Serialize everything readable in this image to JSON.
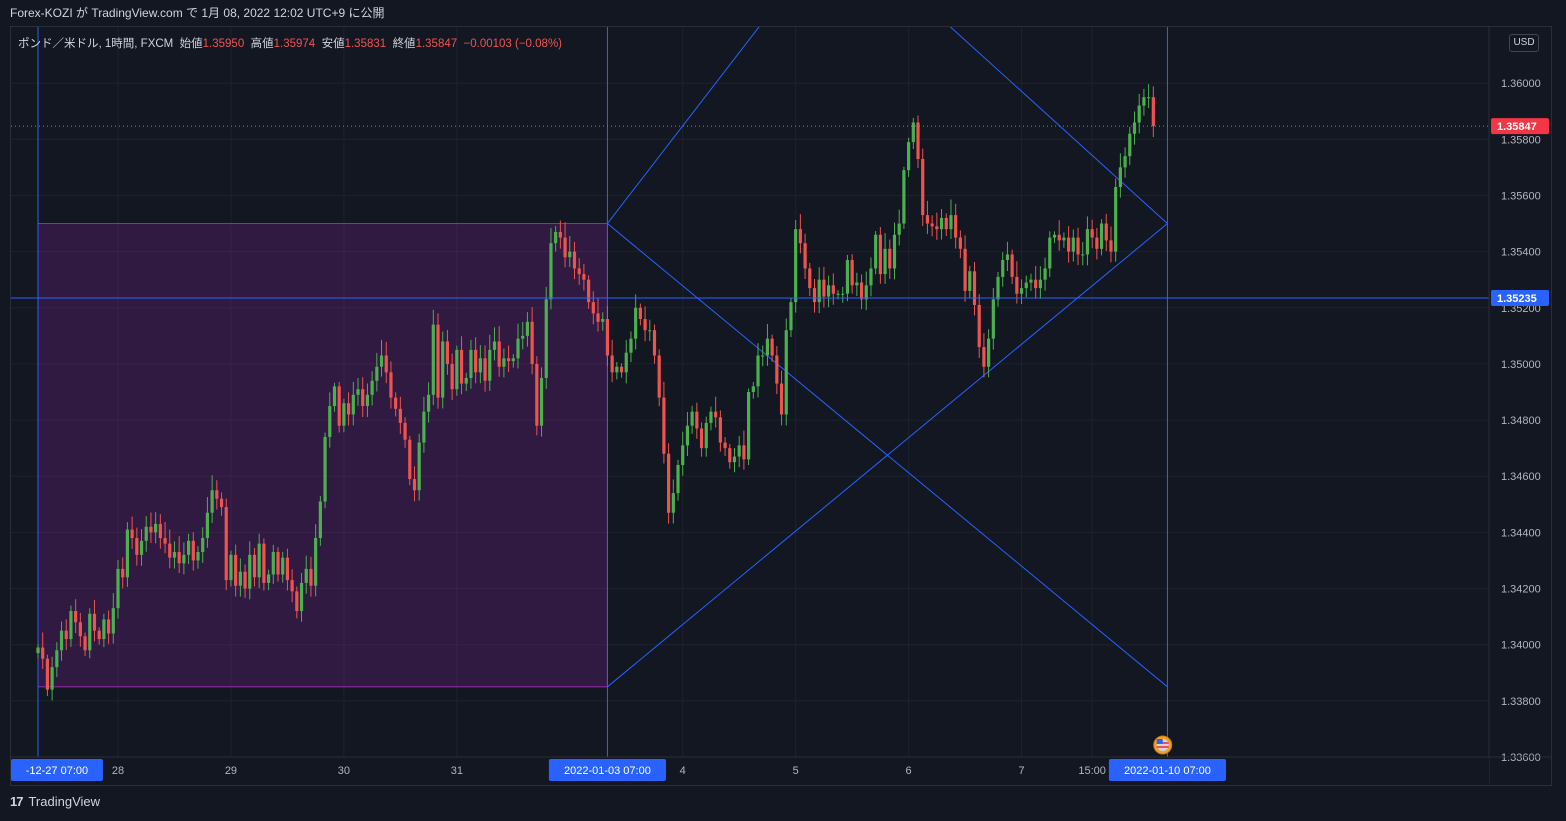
{
  "header": {
    "publisher": "Forex-KOZI が TradingView.com で 1月 08, 2022 12:02 UTC+9 に公開"
  },
  "legend": {
    "symbol": "ポンド／米ドル, 1時間, FXCM",
    "open_label": "始値",
    "open": "1.35950",
    "high_label": "高値",
    "high": "1.35974",
    "low_label": "安値",
    "low": "1.35831",
    "close_label": "終値",
    "close": "1.35847",
    "change": "−0.00103 (−0.08%)"
  },
  "currency_button": "USD",
  "footer": {
    "brand": "TradingView",
    "logo": "17"
  },
  "colors": {
    "background": "#131722",
    "up": "#26a69a",
    "up_body": "#4caf50",
    "down": "#ef5350",
    "drawing_line": "#2962ff",
    "rectangle_fill": "#9c27b0",
    "last_price_label": "#f23645",
    "crosshair_label": "#2962ff"
  },
  "chart_data": {
    "type": "candlestick",
    "ylim": [
      1.336,
      1.362
    ],
    "y_ticks": [
      "1.33600",
      "1.33800",
      "1.34000",
      "1.34200",
      "1.34400",
      "1.34600",
      "1.34800",
      "1.35000",
      "1.35200",
      "1.35400",
      "1.35600",
      "1.35800",
      "1.36000"
    ],
    "y_tick_values": [
      1.336,
      1.338,
      1.34,
      1.342,
      1.344,
      1.346,
      1.348,
      1.35,
      1.352,
      1.354,
      1.356,
      1.358,
      1.36
    ],
    "x_ticks": [
      {
        "label": "-12-27  07:00",
        "t": 0,
        "highlight": true
      },
      {
        "label": "28",
        "t": 17
      },
      {
        "label": "29",
        "t": 41
      },
      {
        "label": "30",
        "t": 65
      },
      {
        "label": "31",
        "t": 89
      },
      {
        "label": "2022-01-03  07:00",
        "t": 121,
        "highlight": true
      },
      {
        "label": "4",
        "t": 137
      },
      {
        "label": "5",
        "t": 161
      },
      {
        "label": "6",
        "t": 185
      },
      {
        "label": "7",
        "t": 209
      },
      {
        "label": "15:00",
        "t": 224
      },
      {
        "label": "2022-01-10  07:00",
        "t": 240,
        "highlight": true
      }
    ],
    "last_price": "1.35847",
    "last_price_value": 1.35847,
    "crosshair_price": "1.35235",
    "crosshair_price_value": 1.35235,
    "closes": [
      1.3399,
      1.3395,
      1.3384,
      1.3392,
      1.3398,
      1.3405,
      1.3402,
      1.3412,
      1.3408,
      1.3403,
      1.3398,
      1.3411,
      1.3405,
      1.3402,
      1.3409,
      1.3404,
      1.3413,
      1.3427,
      1.3424,
      1.3441,
      1.3438,
      1.3432,
      1.3437,
      1.3442,
      1.344,
      1.3443,
      1.3438,
      1.3436,
      1.3431,
      1.3433,
      1.3429,
      1.3432,
      1.3437,
      1.343,
      1.3433,
      1.3438,
      1.3447,
      1.3455,
      1.3452,
      1.3449,
      1.3423,
      1.3432,
      1.3421,
      1.3426,
      1.342,
      1.3432,
      1.3424,
      1.3436,
      1.3422,
      1.3425,
      1.3433,
      1.3425,
      1.3431,
      1.3423,
      1.3419,
      1.3412,
      1.3422,
      1.3427,
      1.3421,
      1.3438,
      1.3451,
      1.3474,
      1.3485,
      1.3492,
      1.3478,
      1.3486,
      1.3482,
      1.3489,
      1.3491,
      1.3485,
      1.3489,
      1.3494,
      1.3499,
      1.3503,
      1.3497,
      1.3488,
      1.3484,
      1.3479,
      1.3473,
      1.3459,
      1.3455,
      1.3472,
      1.3483,
      1.3489,
      1.3514,
      1.3488,
      1.3508,
      1.35,
      1.3491,
      1.3505,
      1.3493,
      1.3495,
      1.3505,
      1.3497,
      1.3502,
      1.3494,
      1.3505,
      1.3508,
      1.3499,
      1.3502,
      1.3501,
      1.3502,
      1.3509,
      1.351,
      1.3515,
      1.35,
      1.3478,
      1.3495,
      1.3523,
      1.3543,
      1.3547,
      1.3545,
      1.3538,
      1.354,
      1.3534,
      1.3532,
      1.353,
      1.3522,
      1.3518,
      1.3515,
      1.3516,
      1.3503,
      1.3497,
      1.3499,
      1.3497,
      1.3504,
      1.3509,
      1.352,
      1.3516,
      1.3512,
      1.3512,
      1.3503,
      1.3488,
      1.3468,
      1.3447,
      1.3454,
      1.3464,
      1.3471,
      1.3478,
      1.3483,
      1.3477,
      1.347,
      1.3479,
      1.3483,
      1.3481,
      1.3472,
      1.347,
      1.3465,
      1.3467,
      1.3471,
      1.3466,
      1.349,
      1.3492,
      1.3503,
      1.3503,
      1.3509,
      1.3503,
      1.3493,
      1.3482,
      1.3512,
      1.3522,
      1.3548,
      1.3543,
      1.3534,
      1.3527,
      1.3522,
      1.353,
      1.3524,
      1.3528,
      1.3525,
      1.3525,
      1.3525,
      1.3537,
      1.3528,
      1.3529,
      1.3523,
      1.3528,
      1.3534,
      1.3546,
      1.3532,
      1.3541,
      1.3534,
      1.3546,
      1.355,
      1.3569,
      1.3579,
      1.3586,
      1.3573,
      1.3553,
      1.355,
      1.3549,
      1.3548,
      1.3552,
      1.3548,
      1.3553,
      1.3545,
      1.3541,
      1.3526,
      1.3533,
      1.3521,
      1.3506,
      1.3499,
      1.3509,
      1.3523,
      1.3531,
      1.3537,
      1.3539,
      1.3531,
      1.3525,
      1.3527,
      1.3529,
      1.353,
      1.3527,
      1.353,
      1.3534,
      1.3545,
      1.3546,
      1.3544,
      1.3545,
      1.354,
      1.3545,
      1.3539,
      1.3539,
      1.3548,
      1.3545,
      1.3541,
      1.355,
      1.3544,
      1.354,
      1.3563,
      1.357,
      1.3574,
      1.3582,
      1.3586,
      1.3592,
      1.3595,
      1.3595,
      1.35847
    ]
  }
}
